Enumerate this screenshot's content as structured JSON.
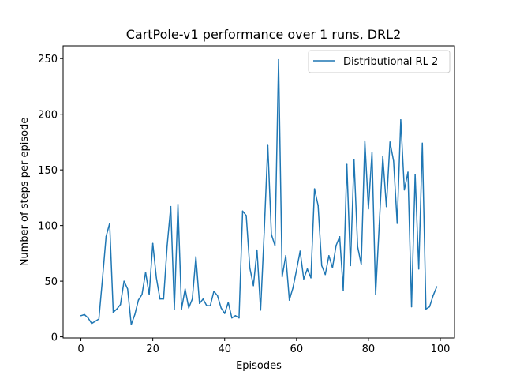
{
  "chart_data": {
    "type": "line",
    "title": "CartPole-v1 performance over 1 runs, DRL2",
    "xlabel": "Episodes",
    "ylabel": "Number of steps per episode",
    "xlim": [
      -4.95,
      103.95
    ],
    "ylim": [
      -1,
      261.5
    ],
    "xticks": [
      0,
      20,
      40,
      60,
      80,
      100
    ],
    "yticks": [
      0,
      50,
      100,
      150,
      200,
      250
    ],
    "grid": false,
    "legend_position": "top-right",
    "series": [
      {
        "name": "Distributional RL 2",
        "color": "#1f77b4",
        "x": [
          0,
          1,
          2,
          3,
          4,
          5,
          6,
          7,
          8,
          9,
          10,
          11,
          12,
          13,
          14,
          15,
          16,
          17,
          18,
          19,
          20,
          21,
          22,
          23,
          24,
          25,
          26,
          27,
          28,
          29,
          30,
          31,
          32,
          33,
          34,
          35,
          36,
          37,
          38,
          39,
          40,
          41,
          42,
          43,
          44,
          45,
          46,
          47,
          48,
          49,
          50,
          51,
          52,
          53,
          54,
          55,
          56,
          57,
          58,
          59,
          60,
          61,
          62,
          63,
          64,
          65,
          66,
          67,
          68,
          69,
          70,
          71,
          72,
          73,
          74,
          75,
          76,
          77,
          78,
          79,
          80,
          81,
          82,
          83,
          84,
          85,
          86,
          87,
          88,
          89,
          90,
          91,
          92,
          93,
          94,
          95,
          96,
          97,
          98,
          99
        ],
        "values": [
          19,
          20,
          17,
          12,
          14,
          16,
          52,
          90,
          102,
          22,
          25,
          29,
          50,
          43,
          11,
          20,
          33,
          38,
          58,
          38,
          84,
          53,
          34,
          34,
          82,
          117,
          25,
          119,
          25,
          43,
          26,
          34,
          72,
          30,
          34,
          28,
          28,
          41,
          37,
          26,
          21,
          31,
          17,
          19,
          17,
          113,
          109,
          62,
          46,
          78,
          24,
          94,
          172,
          92,
          82,
          249,
          54,
          73,
          33,
          44,
          60,
          77,
          52,
          61,
          53,
          133,
          118,
          64,
          56,
          73,
          62,
          82,
          90,
          42,
          155,
          64,
          159,
          81,
          65,
          176,
          115,
          166,
          38,
          100,
          162,
          117,
          175,
          158,
          102,
          195,
          132,
          148,
          27,
          146,
          61,
          174,
          25,
          27,
          37,
          45
        ]
      }
    ]
  }
}
